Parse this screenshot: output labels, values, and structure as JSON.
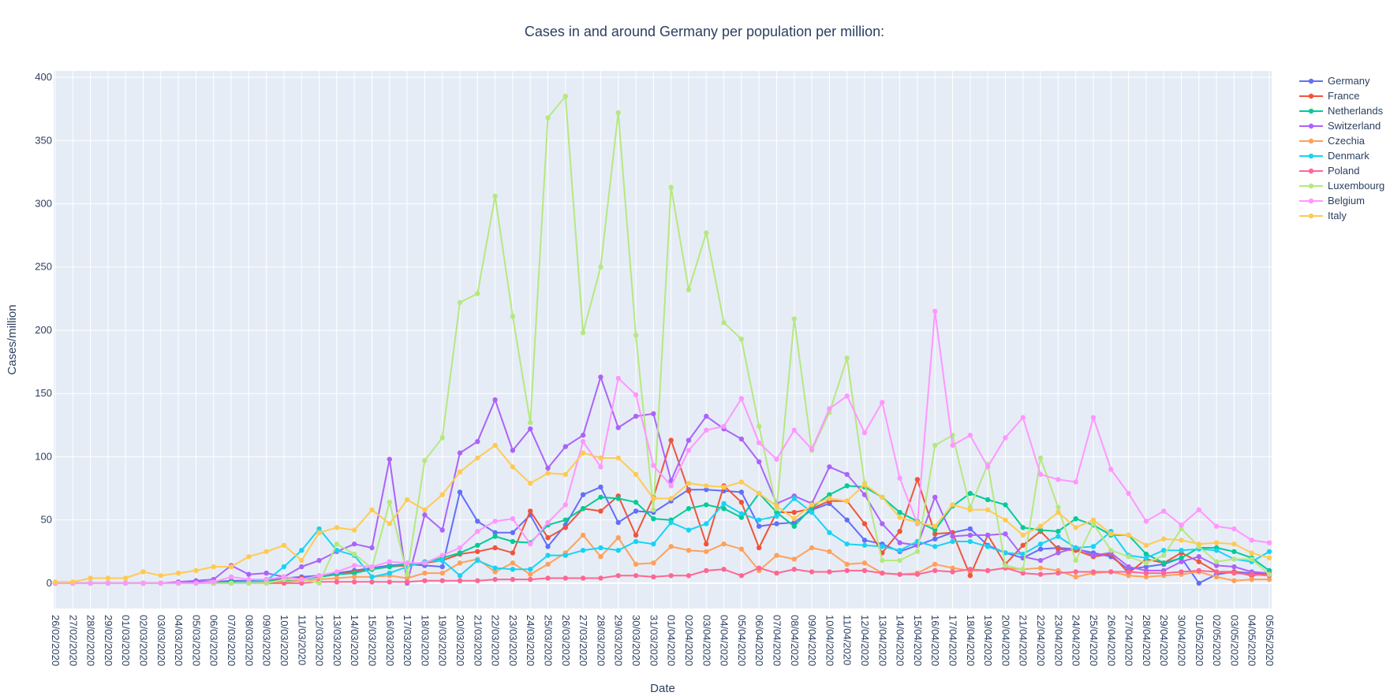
{
  "chart_data": {
    "type": "line",
    "title": "Cases in and around Germany per population per million:",
    "xlabel": "Date",
    "ylabel": "Cases/million",
    "ylim": [
      -20,
      405
    ],
    "yticks": [
      0,
      50,
      100,
      150,
      200,
      250,
      300,
      350,
      400
    ],
    "grid": true,
    "legend_position": "right",
    "x": [
      "26/02/2020",
      "27/02/2020",
      "28/02/2020",
      "29/02/2020",
      "01/03/2020",
      "02/03/2020",
      "03/03/2020",
      "04/03/2020",
      "05/03/2020",
      "06/03/2020",
      "07/03/2020",
      "08/03/2020",
      "09/03/2020",
      "10/03/2020",
      "11/03/2020",
      "12/03/2020",
      "13/03/2020",
      "14/03/2020",
      "15/03/2020",
      "16/03/2020",
      "17/03/2020",
      "18/03/2020",
      "19/03/2020",
      "20/03/2020",
      "21/03/2020",
      "22/03/2020",
      "23/03/2020",
      "24/03/2020",
      "25/03/2020",
      "26/03/2020",
      "27/03/2020",
      "28/03/2020",
      "29/03/2020",
      "30/03/2020",
      "31/03/2020",
      "01/04/2020",
      "02/04/2020",
      "03/04/2020",
      "04/04/2020",
      "05/04/2020",
      "06/04/2020",
      "07/04/2020",
      "08/04/2020",
      "09/04/2020",
      "10/04/2020",
      "11/04/2020",
      "12/04/2020",
      "13/04/2020",
      "14/04/2020",
      "15/04/2020",
      "16/04/2020",
      "17/04/2020",
      "18/04/2020",
      "19/04/2020",
      "20/04/2020",
      "21/04/2020",
      "22/04/2020",
      "23/04/2020",
      "24/04/2020",
      "25/04/2020",
      "26/04/2020",
      "27/04/2020",
      "28/04/2020",
      "29/04/2020",
      "30/04/2020",
      "01/05/2020",
      "02/05/2020",
      "03/05/2020",
      "04/05/2020",
      "05/05/2020"
    ],
    "series": [
      {
        "name": "Germany",
        "color": "#636efa",
        "values": [
          0,
          0,
          0,
          0,
          0,
          0,
          0,
          0,
          1,
          1,
          2,
          2,
          3,
          4,
          5,
          6,
          8,
          10,
          12,
          14,
          15,
          14,
          13,
          72,
          49,
          40,
          40,
          54,
          29,
          46,
          70,
          76,
          48,
          57,
          56,
          65,
          74,
          74,
          73,
          72,
          45,
          47,
          48,
          58,
          63,
          50,
          34,
          31,
          25,
          30,
          35,
          40,
          43,
          30,
          24,
          20,
          27,
          28,
          27,
          24,
          21,
          11,
          13,
          15,
          20,
          0,
          7,
          9,
          8,
          7
        ]
      },
      {
        "name": "France",
        "color": "#ef553b",
        "values": [
          0,
          0,
          0,
          0,
          0,
          0,
          0,
          0,
          0,
          0,
          1,
          1,
          2,
          3,
          4,
          5,
          7,
          9,
          11,
          13,
          14,
          16,
          18,
          23,
          25,
          28,
          24,
          57,
          36,
          44,
          59,
          57,
          69,
          38,
          68,
          113,
          73,
          31,
          77,
          64,
          28,
          56,
          56,
          59,
          65,
          65,
          47,
          24,
          41,
          82,
          39,
          40,
          6,
          38,
          15,
          30,
          41,
          27,
          26,
          21,
          23,
          8,
          19,
          16,
          24,
          17,
          9,
          9,
          6,
          8
        ]
      },
      {
        "name": "Netherlands",
        "color": "#00cc96",
        "values": [
          0,
          0,
          0,
          0,
          0,
          0,
          0,
          0,
          0,
          0,
          1,
          1,
          2,
          2,
          3,
          5,
          7,
          8,
          11,
          13,
          15,
          16,
          20,
          24,
          30,
          37,
          33,
          32,
          46,
          50,
          59,
          68,
          67,
          64,
          51,
          50,
          59,
          62,
          59,
          52,
          71,
          56,
          45,
          60,
          70,
          77,
          76,
          68,
          56,
          49,
          42,
          61,
          71,
          66,
          62,
          44,
          42,
          41,
          51,
          46,
          38,
          38,
          23,
          16,
          20,
          28,
          28,
          25,
          20,
          10
        ]
      },
      {
        "name": "Switzerland",
        "color": "#ab63fa",
        "values": [
          0,
          0,
          0,
          0,
          0,
          0,
          0,
          1,
          2,
          3,
          14,
          7,
          8,
          5,
          13,
          18,
          25,
          31,
          28,
          98,
          0,
          54,
          42,
          103,
          112,
          145,
          105,
          122,
          91,
          108,
          117,
          163,
          123,
          132,
          134,
          81,
          113,
          132,
          122,
          114,
          96,
          63,
          69,
          63,
          92,
          86,
          70,
          47,
          32,
          30,
          68,
          37,
          38,
          38,
          39,
          21,
          18,
          24,
          28,
          22,
          24,
          13,
          10,
          10,
          17,
          21,
          14,
          13,
          9,
          8
        ]
      },
      {
        "name": "Czechia",
        "color": "#ffa15a",
        "values": [
          0,
          0,
          0,
          0,
          0,
          0,
          0,
          0,
          0,
          0,
          0,
          1,
          1,
          1,
          2,
          3,
          4,
          5,
          5,
          6,
          4,
          8,
          8,
          16,
          19,
          9,
          16,
          7,
          15,
          24,
          38,
          21,
          36,
          15,
          16,
          29,
          26,
          25,
          31,
          27,
          10,
          22,
          19,
          28,
          25,
          15,
          16,
          8,
          7,
          8,
          15,
          12,
          10,
          10,
          12,
          11,
          12,
          10,
          5,
          8,
          9,
          6,
          5,
          6,
          7,
          9,
          5,
          2,
          3,
          3
        ]
      },
      {
        "name": "Denmark",
        "color": "#19d3f3",
        "values": [
          0,
          0,
          0,
          0,
          0,
          0,
          0,
          0,
          0,
          0,
          0,
          1,
          2,
          13,
          26,
          43,
          26,
          22,
          5,
          8,
          13,
          17,
          18,
          6,
          18,
          12,
          11,
          11,
          22,
          22,
          26,
          28,
          26,
          33,
          31,
          48,
          42,
          47,
          63,
          55,
          50,
          53,
          67,
          56,
          40,
          31,
          30,
          29,
          26,
          33,
          29,
          33,
          33,
          29,
          24,
          23,
          31,
          37,
          28,
          29,
          41,
          22,
          20,
          26,
          26,
          27,
          26,
          19,
          17,
          25
        ]
      },
      {
        "name": "Poland",
        "color": "#ff6692",
        "values": [
          0,
          0,
          0,
          0,
          0,
          0,
          0,
          0,
          0,
          0,
          0,
          0,
          0,
          0,
          0,
          1,
          1,
          1,
          1,
          1,
          1,
          2,
          2,
          2,
          2,
          3,
          3,
          3,
          4,
          4,
          4,
          4,
          6,
          6,
          5,
          6,
          6,
          10,
          11,
          6,
          12,
          8,
          11,
          9,
          9,
          10,
          10,
          8,
          7,
          7,
          10,
          9,
          11,
          10,
          12,
          8,
          7,
          8,
          9,
          9,
          9,
          9,
          8,
          8,
          9,
          10,
          9,
          8,
          7,
          6
        ]
      },
      {
        "name": "Luxembourg",
        "color": "#b6e880",
        "values": [
          0,
          0,
          0,
          0,
          0,
          0,
          0,
          0,
          0,
          0,
          0,
          0,
          0,
          3,
          3,
          0,
          31,
          23,
          12,
          64,
          7,
          97,
          115,
          222,
          229,
          306,
          211,
          127,
          368,
          385,
          198,
          250,
          372,
          196,
          58,
          313,
          232,
          277,
          206,
          193,
          124,
          59,
          209,
          105,
          135,
          178,
          79,
          18,
          18,
          25,
          109,
          117,
          60,
          94,
          14,
          11,
          99,
          60,
          18,
          47,
          26,
          21,
          16,
          22,
          43,
          29,
          17,
          19,
          19,
          7
        ]
      },
      {
        "name": "Belgium",
        "color": "#ff97ff",
        "values": [
          0,
          0,
          0,
          0,
          0,
          0,
          0,
          0,
          0,
          1,
          5,
          3,
          3,
          5,
          3,
          6,
          9,
          14,
          13,
          17,
          16,
          16,
          22,
          28,
          41,
          49,
          51,
          31,
          48,
          62,
          112,
          92,
          162,
          149,
          93,
          77,
          105,
          121,
          124,
          146,
          111,
          98,
          121,
          106,
          138,
          148,
          119,
          143,
          83,
          47,
          215,
          109,
          117,
          92,
          115,
          131,
          86,
          82,
          80,
          131,
          90,
          71,
          49,
          57,
          46,
          58,
          45,
          43,
          34,
          32
        ]
      },
      {
        "name": "Italy",
        "color": "#fecb52",
        "values": [
          1,
          1,
          4,
          4,
          4,
          9,
          6,
          8,
          10,
          13,
          13,
          21,
          25,
          30,
          18,
          40,
          44,
          42,
          58,
          47,
          66,
          58,
          70,
          88,
          99,
          109,
          92,
          79,
          87,
          86,
          103,
          99,
          99,
          86,
          67,
          67,
          79,
          77,
          76,
          80,
          71,
          61,
          51,
          62,
          67,
          65,
          78,
          68,
          52,
          48,
          45,
          62,
          58,
          58,
          50,
          38,
          45,
          56,
          44,
          50,
          39,
          38,
          30,
          35,
          34,
          31,
          32,
          31,
          24,
          20
        ]
      }
    ]
  }
}
